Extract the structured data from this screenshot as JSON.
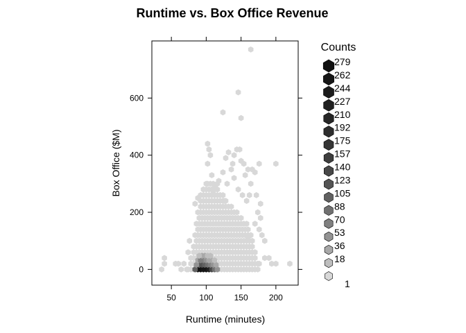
{
  "chart_data": {
    "type": "hexbin",
    "title": "Runtime vs. Box Office Revenue",
    "xlabel": "Runtime (minutes)",
    "ylabel": "Box Office ($M)",
    "xlim": [
      22,
      232
    ],
    "ylim": [
      -55,
      800
    ],
    "xticks": [
      50,
      100,
      150,
      200
    ],
    "yticks": [
      0,
      200,
      400,
      600
    ],
    "grid": false,
    "legend": {
      "title": "Counts",
      "placement": "right",
      "labels": [
        "279",
        "262",
        "244",
        "227",
        "210",
        "192",
        "175",
        "157",
        "140",
        "123",
        "105",
        "88",
        "70",
        "53",
        "36",
        "18",
        "1"
      ],
      "colors": [
        "#111111",
        "#161616",
        "#1b1b1b",
        "#202020",
        "#262626",
        "#2d2d2d",
        "#353535",
        "#3e3e3e",
        "#484848",
        "#545454",
        "#616161",
        "#707070",
        "#808080",
        "#939393",
        "#a8a8a8",
        "#bebebe",
        "#d8d8d8"
      ]
    },
    "core_bins": [
      {
        "x": 88,
        "y": 0,
        "count": 270
      },
      {
        "x": 92,
        "y": 0,
        "count": 279
      },
      {
        "x": 96,
        "y": 0,
        "count": 270
      },
      {
        "x": 100,
        "y": 0,
        "count": 262
      },
      {
        "x": 104,
        "y": 0,
        "count": 230
      },
      {
        "x": 108,
        "y": 0,
        "count": 150
      },
      {
        "x": 84,
        "y": 0,
        "count": 120
      },
      {
        "x": 112,
        "y": 0,
        "count": 90
      },
      {
        "x": 116,
        "y": 0,
        "count": 60
      },
      {
        "x": 90,
        "y": 16,
        "count": 105
      },
      {
        "x": 94,
        "y": 16,
        "count": 130
      },
      {
        "x": 98,
        "y": 16,
        "count": 110
      },
      {
        "x": 102,
        "y": 16,
        "count": 95
      },
      {
        "x": 106,
        "y": 16,
        "count": 80
      },
      {
        "x": 110,
        "y": 16,
        "count": 60
      },
      {
        "x": 86,
        "y": 16,
        "count": 55
      },
      {
        "x": 114,
        "y": 16,
        "count": 40
      },
      {
        "x": 88,
        "y": 32,
        "count": 50
      },
      {
        "x": 92,
        "y": 32,
        "count": 75
      },
      {
        "x": 96,
        "y": 32,
        "count": 70
      },
      {
        "x": 100,
        "y": 32,
        "count": 62
      },
      {
        "x": 104,
        "y": 32,
        "count": 50
      },
      {
        "x": 108,
        "y": 32,
        "count": 40
      },
      {
        "x": 112,
        "y": 32,
        "count": 30
      },
      {
        "x": 94,
        "y": 48,
        "count": 45
      },
      {
        "x": 98,
        "y": 48,
        "count": 40
      },
      {
        "x": 102,
        "y": 48,
        "count": 35
      },
      {
        "x": 106,
        "y": 48,
        "count": 28
      },
      {
        "x": 90,
        "y": 48,
        "count": 26
      }
    ],
    "outlier_points": [
      [
        36,
        0
      ],
      [
        40,
        20
      ],
      [
        40,
        40
      ],
      [
        56,
        20
      ],
      [
        60,
        20
      ],
      [
        64,
        0
      ],
      [
        68,
        20
      ],
      [
        72,
        0
      ],
      [
        74,
        60
      ],
      [
        76,
        100
      ],
      [
        164,
        770
      ],
      [
        146,
        620
      ],
      [
        124,
        550
      ],
      [
        150,
        530
      ],
      [
        102,
        440
      ],
      [
        104,
        420
      ],
      [
        106,
        400
      ],
      [
        102,
        370
      ],
      [
        128,
        390
      ],
      [
        132,
        410
      ],
      [
        138,
        370
      ],
      [
        140,
        400
      ],
      [
        144,
        420
      ],
      [
        148,
        420
      ],
      [
        150,
        380
      ],
      [
        154,
        370
      ],
      [
        156,
        330
      ],
      [
        160,
        350
      ],
      [
        166,
        350
      ],
      [
        170,
        340
      ],
      [
        176,
        370
      ],
      [
        200,
        370
      ],
      [
        164,
        300
      ],
      [
        162,
        260
      ],
      [
        172,
        260
      ],
      [
        178,
        230
      ],
      [
        174,
        200
      ],
      [
        178,
        180
      ],
      [
        170,
        160
      ],
      [
        176,
        140
      ],
      [
        180,
        120
      ],
      [
        184,
        100
      ],
      [
        190,
        40
      ],
      [
        194,
        20
      ],
      [
        200,
        20
      ],
      [
        220,
        20
      ],
      [
        176,
        20
      ],
      [
        184,
        40
      ],
      [
        170,
        60
      ],
      [
        162,
        80
      ],
      [
        160,
        110
      ],
      [
        124,
        340
      ],
      [
        118,
        310
      ],
      [
        112,
        290
      ],
      [
        96,
        280
      ],
      [
        108,
        330
      ],
      [
        92,
        260
      ],
      [
        88,
        250
      ],
      [
        84,
        230
      ],
      [
        120,
        260
      ],
      [
        130,
        300
      ],
      [
        126,
        240
      ],
      [
        140,
        320
      ],
      [
        146,
        280
      ],
      [
        152,
        260
      ],
      [
        136,
        350
      ],
      [
        158,
        240
      ],
      [
        116,
        300
      ],
      [
        110,
        270
      ],
      [
        100,
        300
      ]
    ],
    "cloud_region": {
      "type": "irregular",
      "x_range": [
        74,
        172
      ],
      "y_range": [
        0,
        300
      ],
      "peak_runtime": 100,
      "peak_boxoffice": 0
    }
  }
}
